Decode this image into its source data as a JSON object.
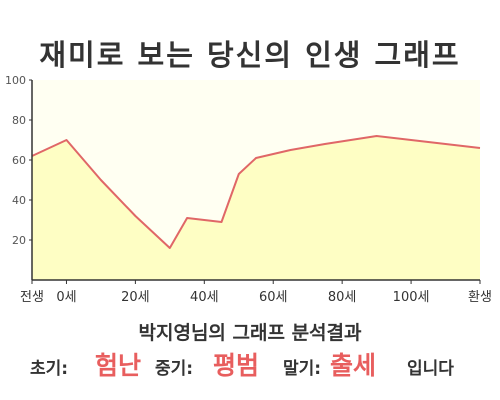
{
  "title": "재미로 보는 당신의 인생 그래프",
  "colors": {
    "line": "#e06767",
    "area": "#fefec4",
    "plot_bg": "#fffff2",
    "axis": "#333333",
    "highlight": "#e85e5e"
  },
  "chart_data": {
    "type": "area",
    "x_ticks": [
      "전생",
      "0세",
      "20세",
      "40세",
      "60세",
      "80세",
      "100세",
      "환생"
    ],
    "y_ticks": [
      "100",
      "80",
      "60",
      "40",
      "20"
    ],
    "ylim": [
      0,
      100
    ],
    "grid": false,
    "legend": "none",
    "series": [
      {
        "x": [
          "전생",
          "0세",
          "10세",
          "20세",
          "30세",
          "35세",
          "45세",
          "50세",
          "55세",
          "65세",
          "75세",
          "90세",
          "105세",
          "환생"
        ],
        "values": [
          62,
          70,
          50,
          32,
          16,
          31,
          29,
          53,
          61,
          65,
          68,
          72,
          69,
          66
        ]
      }
    ]
  },
  "summary": {
    "heading": "박지영님의 그래프 분석결과",
    "early_label": "초기:",
    "early_value": "험난",
    "middle_label": "중기:",
    "middle_value": "평범",
    "late_label": "말기:",
    "late_value": "출세",
    "ending": "입니다"
  }
}
